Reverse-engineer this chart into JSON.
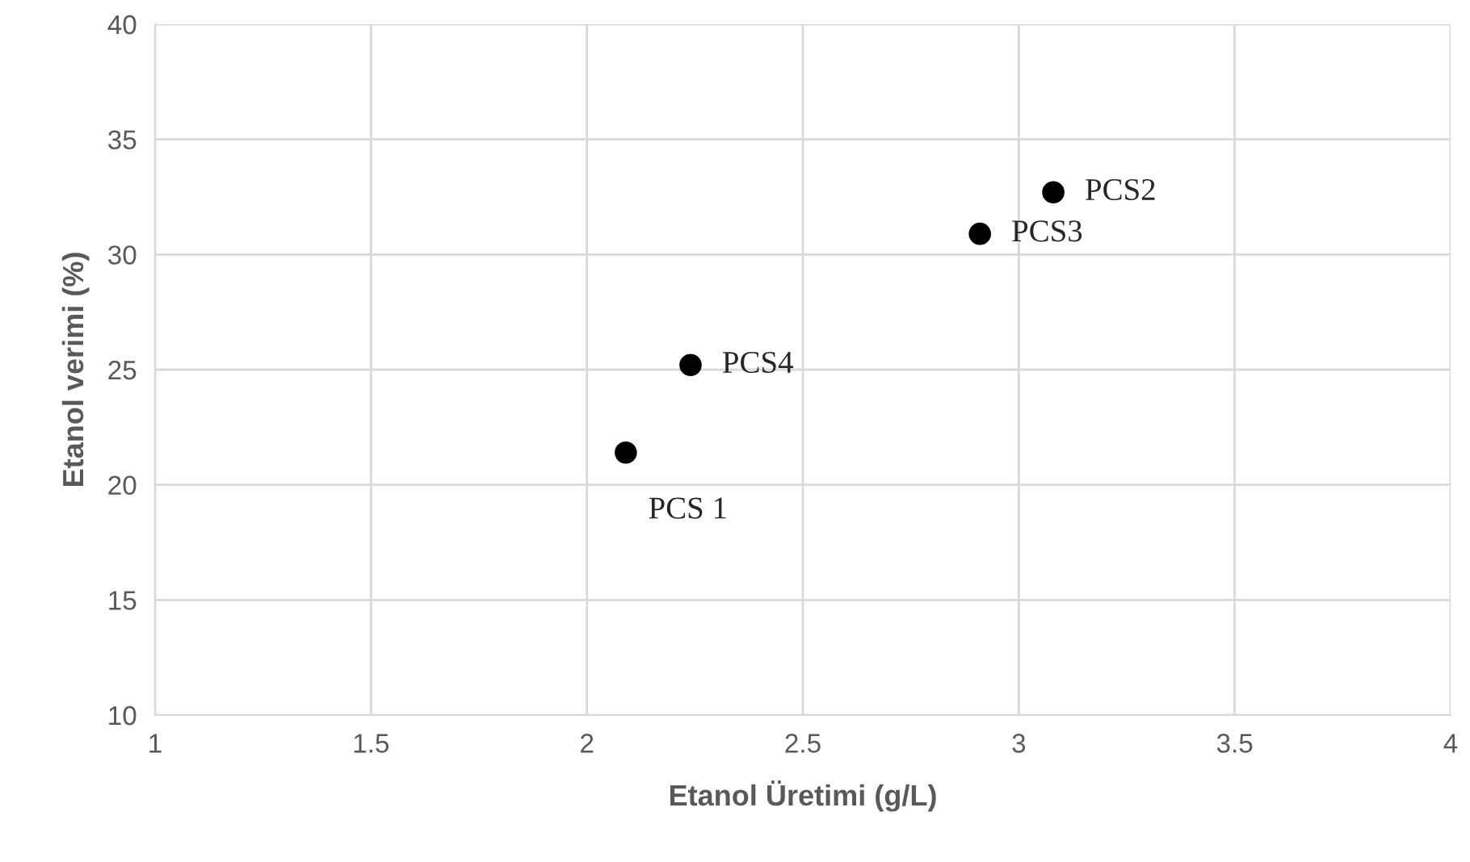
{
  "chart_data": {
    "type": "scatter",
    "xlabel": "Etanol Üretimi (g/L)",
    "ylabel": "Etanol verimi (%)",
    "x": [
      2.09,
      2.24,
      2.91,
      3.08
    ],
    "values": [
      21.4,
      25.2,
      30.9,
      32.7
    ],
    "color": "#000000",
    "marker": "circle",
    "annotations": [
      {
        "text": "PCS 1",
        "x": 2.09,
        "y": 21.4
      },
      {
        "text": "PCS4",
        "x": 2.24,
        "y": 25.2
      },
      {
        "text": "PCS3",
        "x": 2.91,
        "y": 30.9
      },
      {
        "text": "PCS2",
        "x": 3.08,
        "y": 32.7
      }
    ],
    "xlim": [
      1,
      4
    ],
    "xticks": [
      1,
      1.5,
      2,
      2.5,
      3,
      3.5,
      4
    ],
    "ylim": [
      10,
      40
    ],
    "yticks": [
      10,
      15,
      20,
      25,
      30,
      35,
      40
    ],
    "grid": true,
    "legend": false
  }
}
